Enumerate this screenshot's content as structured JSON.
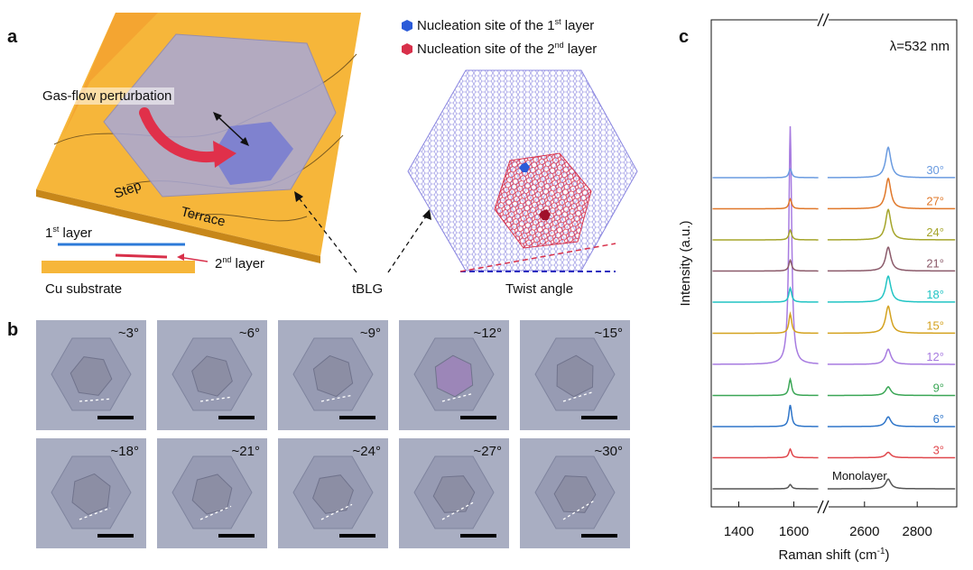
{
  "panel_labels": {
    "a": "a",
    "b": "b",
    "c": "c"
  },
  "panel_a": {
    "legend": [
      {
        "prefix": "Nucleation site of the 1",
        "sup": "st",
        "suffix": " layer",
        "color": "#2b5bd8"
      },
      {
        "prefix": "Nucleation site of the 2",
        "sup": "nd",
        "suffix": " layer",
        "color": "#d8304a"
      }
    ],
    "gas_flow": "Gas-flow perturbation",
    "step": "Step",
    "terrace": "Terrace",
    "layer1_prefix": "1",
    "layer1_sup": "st",
    "layer1_suffix": " layer",
    "layer2_prefix": "2",
    "layer2_sup": "nd",
    "layer2_suffix": " layer",
    "substrate": "Cu substrate",
    "tblg": "tBLG",
    "twist_angle": "Twist angle"
  },
  "panel_b": {
    "tiles": [
      "~3°",
      "~6°",
      "~9°",
      "~12°",
      "~15°",
      "~18°",
      "~21°",
      "~24°",
      "~27°",
      "~30°"
    ]
  },
  "chart_data": {
    "type": "line",
    "title": "λ=532 nm",
    "xlabel": "Raman shift (cm",
    "xlabel_sup": "-1",
    "xlabel_suffix": ")",
    "ylabel": "Intensity (a.u.)",
    "x_broken_axis": [
      [
        1300,
        1700
      ],
      [
        2450,
        2950
      ]
    ],
    "xticks": [
      "1400",
      "1600",
      "2600",
      "2800"
    ],
    "xtick_values": [
      1400,
      1600,
      2600,
      2800
    ],
    "series": [
      {
        "name": "Monolayer",
        "color": "#555555",
        "g_peak": 1587,
        "g_height": 0.4,
        "d2_peak": 2690,
        "d2_height": 0.9
      },
      {
        "name": "3°",
        "color": "#e0474c",
        "g_peak": 1587,
        "g_height": 0.8,
        "d2_peak": 2690,
        "d2_height": 0.5
      },
      {
        "name": "6°",
        "color": "#2e75c9",
        "g_peak": 1587,
        "g_height": 2.0,
        "d2_peak": 2690,
        "d2_height": 0.9
      },
      {
        "name": "9°",
        "color": "#3aa655",
        "g_peak": 1587,
        "g_height": 1.5,
        "d2_peak": 2690,
        "d2_height": 0.8
      },
      {
        "name": "12°",
        "color": "#a77be0",
        "g_peak": 1587,
        "g_height": 22.0,
        "d2_peak": 2690,
        "d2_height": 1.4
      },
      {
        "name": "15°",
        "color": "#d4a21f",
        "g_peak": 1587,
        "g_height": 1.8,
        "d2_peak": 2690,
        "d2_height": 2.5
      },
      {
        "name": "18°",
        "color": "#21c4c4",
        "g_peak": 1587,
        "g_height": 1.3,
        "d2_peak": 2690,
        "d2_height": 2.4
      },
      {
        "name": "21°",
        "color": "#8b5a6a",
        "g_peak": 1587,
        "g_height": 1.0,
        "d2_peak": 2690,
        "d2_height": 2.2
      },
      {
        "name": "24°",
        "color": "#a5a52a",
        "g_peak": 1587,
        "g_height": 0.9,
        "d2_peak": 2690,
        "d2_height": 2.8
      },
      {
        "name": "27°",
        "color": "#e0782a",
        "g_peak": 1587,
        "g_height": 0.9,
        "d2_peak": 2690,
        "d2_height": 2.8
      },
      {
        "name": "30°",
        "color": "#6a9be0",
        "g_peak": 1587,
        "g_height": 0.8,
        "d2_peak": 2690,
        "d2_height": 2.8
      }
    ]
  }
}
